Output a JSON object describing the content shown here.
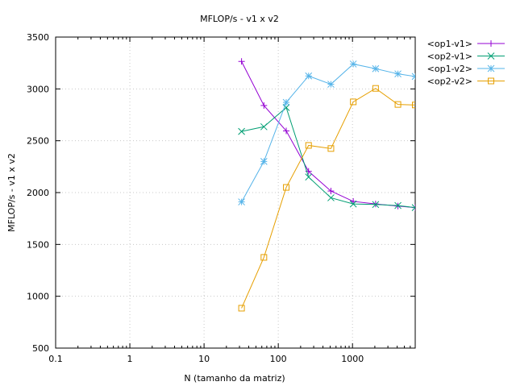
{
  "chart_data": {
    "type": "line",
    "title": "MFLOP/s - v1 x v2",
    "xlabel": "N (tamanho da matriz)",
    "ylabel": "MFLOP/s - v1 x v2",
    "xscale": "log",
    "xlim": [
      0.1,
      7000
    ],
    "ylim": [
      500,
      3500
    ],
    "x_ticks": [
      0.1,
      1,
      10,
      100,
      1000
    ],
    "x_tick_labels": [
      "0.1",
      "1",
      "10",
      "100",
      "1000"
    ],
    "y_ticks": [
      500,
      1000,
      1500,
      2000,
      2500,
      3000,
      3500
    ],
    "y_tick_labels": [
      "500",
      "1000",
      "1500",
      "2000",
      "2500",
      "3000",
      "3500"
    ],
    "grid": true,
    "legend_position": "outside-top-right",
    "series": [
      {
        "name": "<op1-v1>",
        "color": "#9400d3",
        "marker": "plus",
        "x": [
          32,
          64,
          128,
          256,
          512,
          1024,
          2048,
          4096,
          7000
        ],
        "y": [
          3265,
          2840,
          2595,
          2205,
          2015,
          1915,
          1890,
          1870,
          1855
        ]
      },
      {
        "name": "<op2-v1>",
        "color": "#009e73",
        "marker": "cross",
        "x": [
          32,
          64,
          128,
          256,
          512,
          1024,
          2048,
          4096,
          7000
        ],
        "y": [
          2590,
          2635,
          2820,
          2150,
          1950,
          1890,
          1885,
          1875,
          1855
        ]
      },
      {
        "name": "<op1-v2>",
        "color": "#56b4e9",
        "marker": "star",
        "x": [
          32,
          64,
          128,
          256,
          512,
          1024,
          2048,
          4096,
          7000
        ],
        "y": [
          1910,
          2300,
          2870,
          3125,
          3045,
          3240,
          3195,
          3145,
          3120
        ]
      },
      {
        "name": "<op2-v2>",
        "color": "#e69f00",
        "marker": "square",
        "x": [
          32,
          64,
          128,
          256,
          512,
          1024,
          2048,
          4096,
          7000
        ],
        "y": [
          885,
          1375,
          2050,
          2455,
          2425,
          2875,
          3005,
          2850,
          2845
        ]
      }
    ]
  }
}
